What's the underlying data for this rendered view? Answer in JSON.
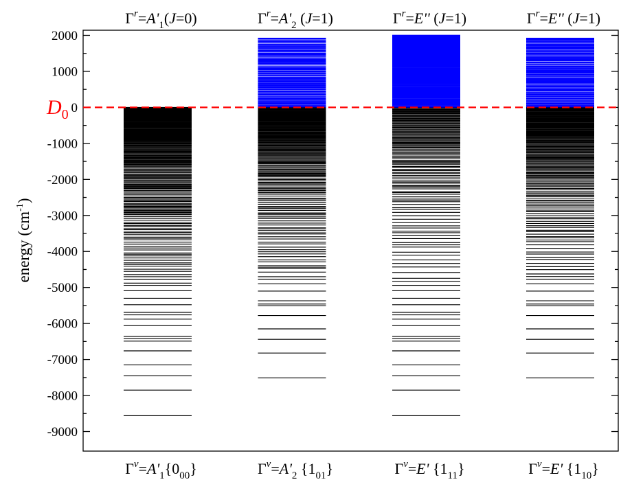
{
  "chart_data": {
    "type": "level-diagram",
    "ylabel": "energy (cm",
    "ylabel_sup": "-1",
    "ylabel_close": ")",
    "ylim": [
      -9600,
      2100
    ],
    "yticks": [
      2000,
      1000,
      0,
      -1000,
      -2000,
      -3000,
      -4000,
      -5000,
      -6000,
      -7000,
      -8000,
      -9000
    ],
    "ytick_labels": [
      "2000",
      "1000",
      "0",
      "-1000",
      "-2000",
      "-3000",
      "-4000",
      "-5000",
      "-6000",
      "-7000",
      "-8000",
      "-9000"
    ],
    "grid": false,
    "threshold": {
      "label": "D",
      "label_sub": "0",
      "value": 0,
      "color": "#ff0000",
      "style": "dashed"
    },
    "colors": {
      "bound": "#000000",
      "continuum": "#0000ff"
    },
    "columns": [
      {
        "top_label": {
          "g": "Γ",
          "sup": "r",
          "eq": "=",
          "sym": "A'",
          "sub": "1",
          "tail": "(J=0)"
        },
        "bottom_label": {
          "g": "Γ",
          "sup": "v",
          "eq": "=",
          "sym": "A'",
          "sub": "1",
          "tail": "{0",
          "tail_sub": "00",
          "close": "}"
        },
        "deepest": -8560,
        "bound_levels": [
          -8560,
          -7850,
          -7450,
          -7150,
          -6760,
          -6490,
          -6420,
          -6360,
          -6060,
          -5880,
          -5760,
          -5690,
          -5480,
          -5300,
          -5090,
          -4940
        ],
        "bound_density": 0.33,
        "continuum": null
      },
      {
        "top_label": {
          "g": "Γ",
          "sup": "r",
          "eq": "=",
          "sym": "A'",
          "sub": "2",
          "tail": " (J=1)"
        },
        "bottom_label": {
          "g": "Γ",
          "sup": "v",
          "eq": "=",
          "sym": "A'",
          "sub": "2",
          "tail": " {1",
          "tail_sub": "01",
          "close": "}"
        },
        "deepest": -7510,
        "bound_levels": [
          -7510,
          -6820,
          -6440,
          -6150,
          -5780,
          -5510,
          -5460,
          -5370,
          -5100,
          -4900,
          -4770
        ],
        "bound_density": 0.36,
        "continuum": {
          "from": 0,
          "to": 1920,
          "spacing": 30
        }
      },
      {
        "top_label": {
          "g": "Γ",
          "sup": "r",
          "eq": "=",
          "sym": "E''",
          "sub": "",
          "tail": " (J=1)"
        },
        "bottom_label": {
          "g": "Γ",
          "sup": "v",
          "eq": "=",
          "sym": "E'",
          "sub": "",
          "tail": " {1",
          "tail_sub": "11",
          "close": "}"
        },
        "deepest": -8560,
        "bound_levels": [
          -8560,
          -7850,
          -7450,
          -7150,
          -6760,
          -6490,
          -6420,
          -6360,
          -6060,
          -5880,
          -5760,
          -5690,
          -5480,
          -5300,
          -5090,
          -4940
        ],
        "bound_density": 0.55,
        "continuum": {
          "from": 0,
          "to": 2000,
          "spacing": 18
        }
      },
      {
        "top_label": {
          "g": "Γ",
          "sup": "r",
          "eq": "=",
          "sym": "E''",
          "sub": "",
          "tail": " (J=1)"
        },
        "bottom_label": {
          "g": "Γ",
          "sup": "v",
          "eq": "=",
          "sym": "E'",
          "sub": "",
          "tail": " {1",
          "tail_sub": "10",
          "close": "}"
        },
        "deepest": -7510,
        "bound_levels": [
          -7510,
          -6820,
          -6440,
          -6150,
          -5780,
          -5510,
          -5460,
          -5370,
          -5100,
          -4900,
          -4770
        ],
        "bound_density": 0.36,
        "continuum": {
          "from": 0,
          "to": 1920,
          "spacing": 28
        }
      }
    ]
  }
}
